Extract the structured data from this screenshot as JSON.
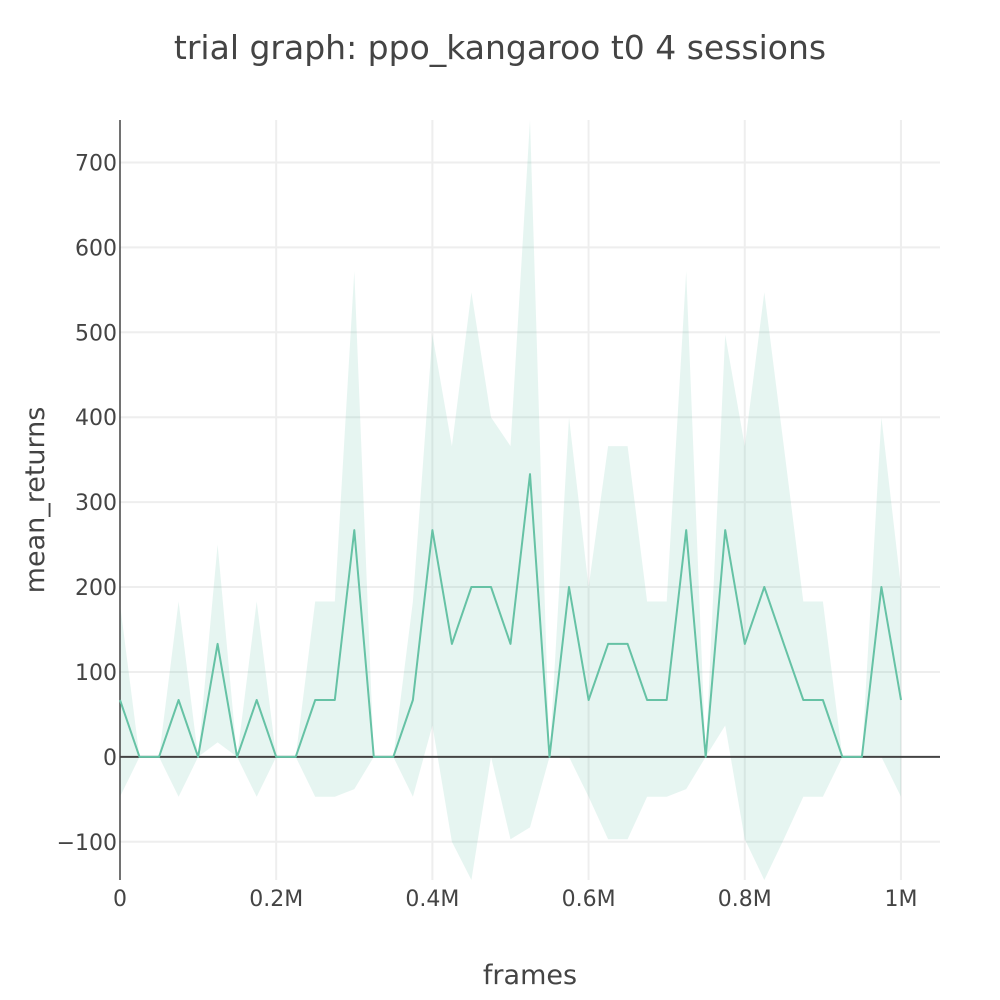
{
  "chart_data": {
    "type": "line",
    "title": "trial graph: ppo_kangaroo t0 4 sessions",
    "xlabel": "frames",
    "ylabel": "mean_returns",
    "xlim": [
      0,
      1050000
    ],
    "ylim": [
      -145,
      750
    ],
    "x_ticks": [
      {
        "value": 0,
        "label": "0"
      },
      {
        "value": 200000,
        "label": "0.2M"
      },
      {
        "value": 400000,
        "label": "0.4M"
      },
      {
        "value": 600000,
        "label": "0.6M"
      },
      {
        "value": 800000,
        "label": "0.8M"
      },
      {
        "value": 1000000,
        "label": "1M"
      }
    ],
    "y_ticks": [
      {
        "value": -100,
        "label": "−100"
      },
      {
        "value": 0,
        "label": "0"
      },
      {
        "value": 100,
        "label": "100"
      },
      {
        "value": 200,
        "label": "200"
      },
      {
        "value": 300,
        "label": "300"
      },
      {
        "value": 400,
        "label": "400"
      },
      {
        "value": 500,
        "label": "500"
      },
      {
        "value": 600,
        "label": "600"
      },
      {
        "value": 700,
        "label": "700"
      }
    ],
    "grid": true,
    "line_color": "#66c2a5",
    "band_color": "#66c2a5",
    "band_opacity": 0.16,
    "series": [
      {
        "x": [
          0,
          25000,
          50000,
          75000,
          100000,
          125000,
          150000,
          175000,
          200000,
          225000,
          250000,
          275000,
          300000,
          325000,
          350000,
          375000,
          400000,
          425000,
          450000,
          475000,
          500000,
          525000,
          550000,
          575000,
          600000,
          625000,
          650000,
          675000,
          700000,
          725000,
          750000,
          775000,
          800000,
          825000,
          850000,
          875000,
          900000,
          925000,
          950000,
          975000,
          1000000
        ],
        "mean": [
          67,
          0,
          0,
          67,
          0,
          133,
          0,
          67,
          0,
          0,
          67,
          67,
          267,
          0,
          0,
          67,
          267,
          133,
          200,
          200,
          133,
          333,
          0,
          200,
          67,
          133,
          133,
          67,
          67,
          267,
          0,
          267,
          133,
          200,
          133,
          67,
          67,
          0,
          0,
          200,
          67
        ],
        "upper": [
          180,
          0,
          0,
          183,
          0,
          250,
          0,
          183,
          0,
          0,
          183,
          183,
          572,
          0,
          0,
          183,
          497,
          366,
          547,
          400,
          366,
          750,
          0,
          400,
          200,
          366,
          366,
          183,
          183,
          572,
          0,
          497,
          366,
          547,
          366,
          183,
          183,
          0,
          0,
          400,
          200
        ],
        "lower": [
          -47,
          0,
          0,
          -47,
          0,
          17,
          0,
          -47,
          0,
          0,
          -47,
          -47,
          -38,
          0,
          0,
          -47,
          37,
          -100,
          -145,
          0,
          -97,
          -83,
          0,
          0,
          -47,
          -97,
          -97,
          -47,
          -47,
          -38,
          0,
          37,
          -97,
          -145,
          -97,
          -47,
          -47,
          0,
          0,
          0,
          -47
        ]
      }
    ]
  }
}
